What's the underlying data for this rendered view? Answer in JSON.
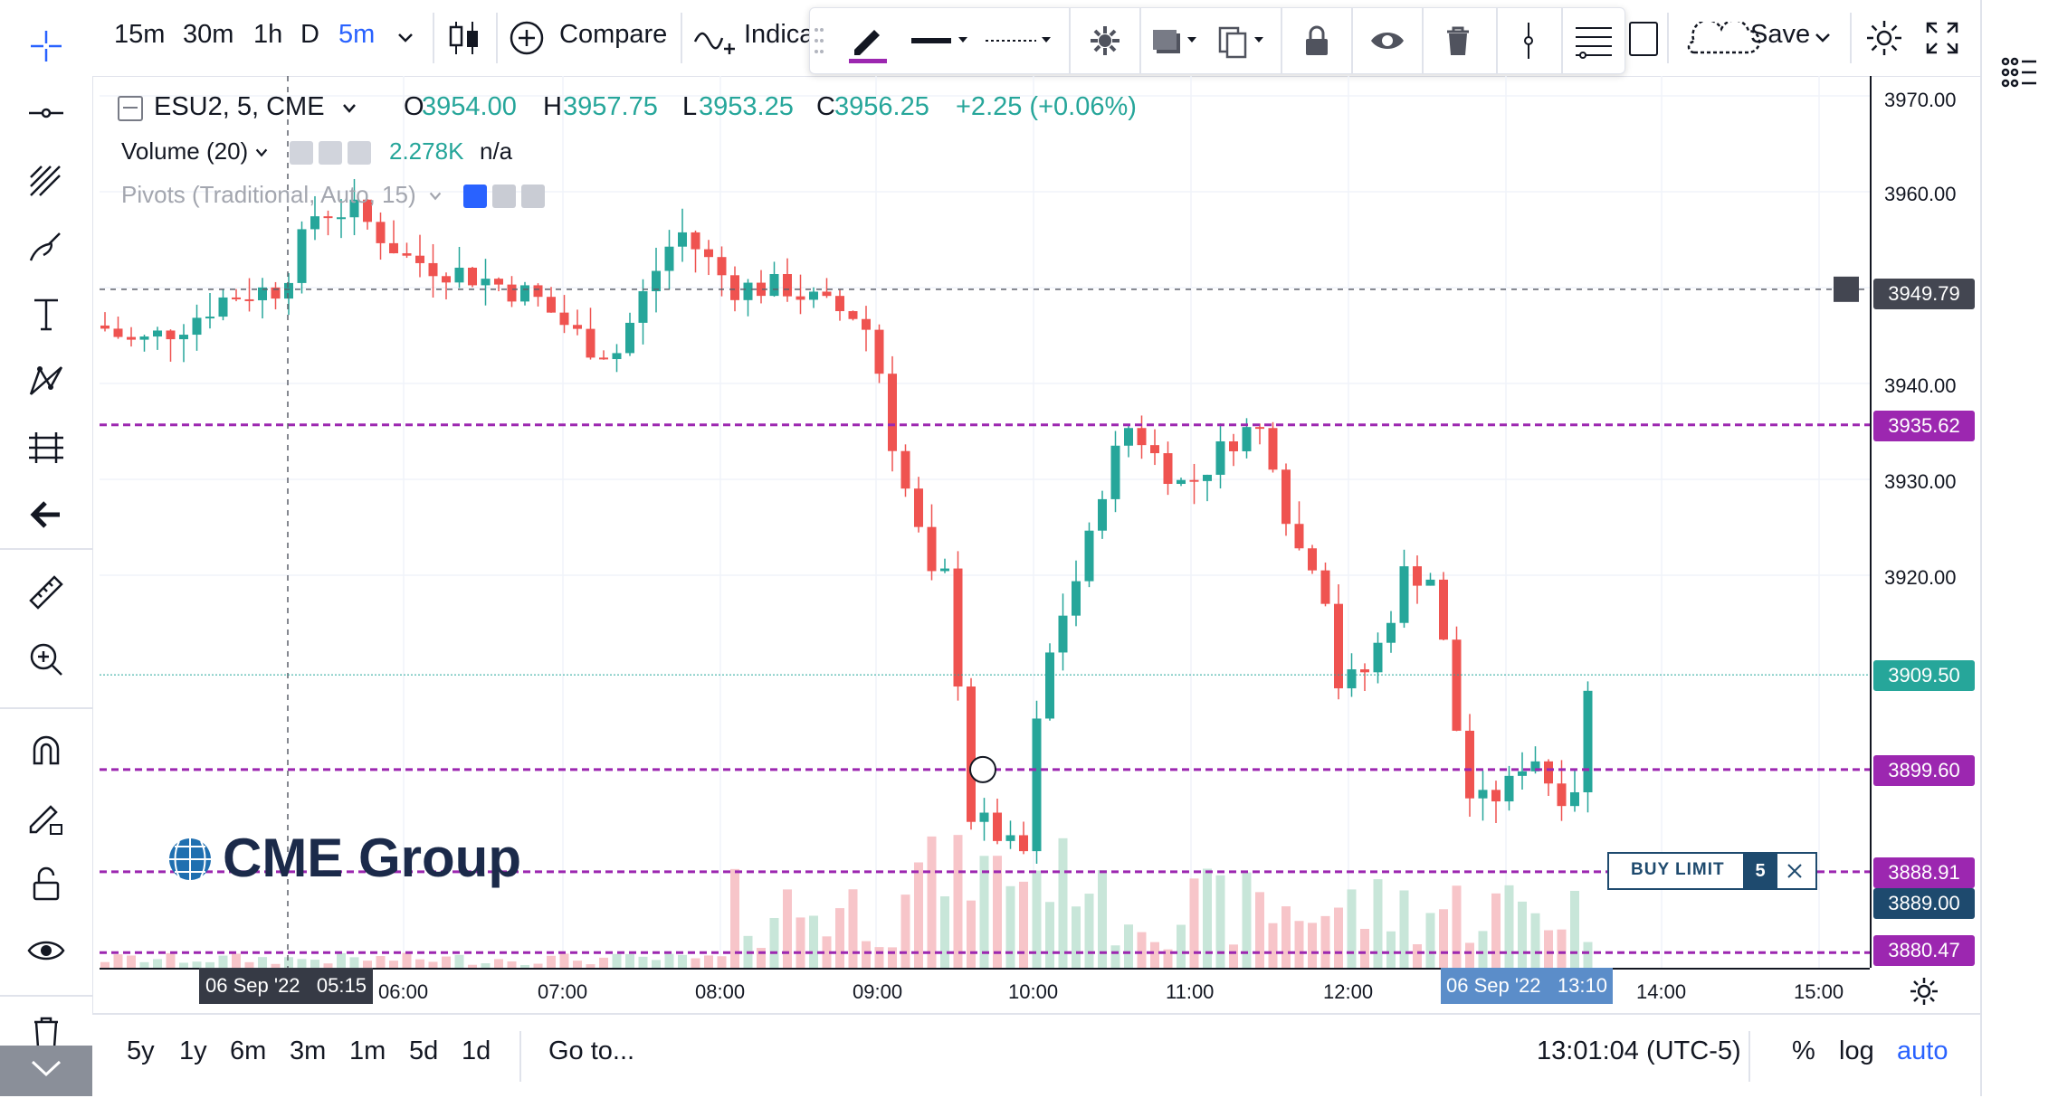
{
  "top_toolbar": {
    "intervals": [
      "15m",
      "30m",
      "1h",
      "D",
      "5m"
    ],
    "active_interval": "5m",
    "compare_label": "Compare",
    "indicators_label": "Indica",
    "save_label": "Save"
  },
  "legend": {
    "symbol": "ESU2, 5, CME",
    "open_label": "O",
    "open": "3954.00",
    "high_label": "H",
    "high": "3957.75",
    "low_label": "L",
    "low": "3953.25",
    "close_label": "C",
    "close": "3956.25",
    "change": "+2.25 (+0.06%)",
    "volume_label": "Volume (20)",
    "volume_value": "2.278K",
    "volume_na": "n/a",
    "pivots_label": "Pivots (Traditional, Auto, 15)"
  },
  "watermark": {
    "text": "CME Group"
  },
  "order": {
    "type_label": "BUY LIMIT",
    "quantity": "5"
  },
  "crosshair": {
    "price": "3949.79",
    "time_date": "06 Sep '22",
    "time_clock": "05:15"
  },
  "cursor_time": {
    "date": "06 Sep '22",
    "clock": "13:10"
  },
  "price_axis": {
    "ticks": [
      "3970.00",
      "3960.00",
      "3940.00",
      "3930.00",
      "3920.00"
    ],
    "labels": {
      "pivot_upper": "3935.62",
      "current": "3909.50",
      "pivot_mid": "3899.60",
      "order_price": "3888.91",
      "last_quote": "3889.00",
      "pivot_lower": "3880.47"
    }
  },
  "time_axis": {
    "ticks": [
      "06:00",
      "07:00",
      "08:00",
      "09:00",
      "10:00",
      "11:00",
      "12:00",
      "14:00",
      "15:00"
    ]
  },
  "bottom_bar": {
    "ranges": [
      "5y",
      "1y",
      "6m",
      "3m",
      "1m",
      "5d",
      "1d"
    ],
    "goto_label": "Go to...",
    "clock": "13:01:04 (UTC-5)",
    "percent_label": "%",
    "log_label": "log",
    "auto_label": "auto"
  },
  "colors": {
    "up": "#26a69a",
    "down": "#ef5350",
    "up_volume": "#c8e6d9",
    "down_volume": "#f7c5c9",
    "pivot": "#9c27b0",
    "active": "#2962ff",
    "order": "#1e4a6e"
  }
}
